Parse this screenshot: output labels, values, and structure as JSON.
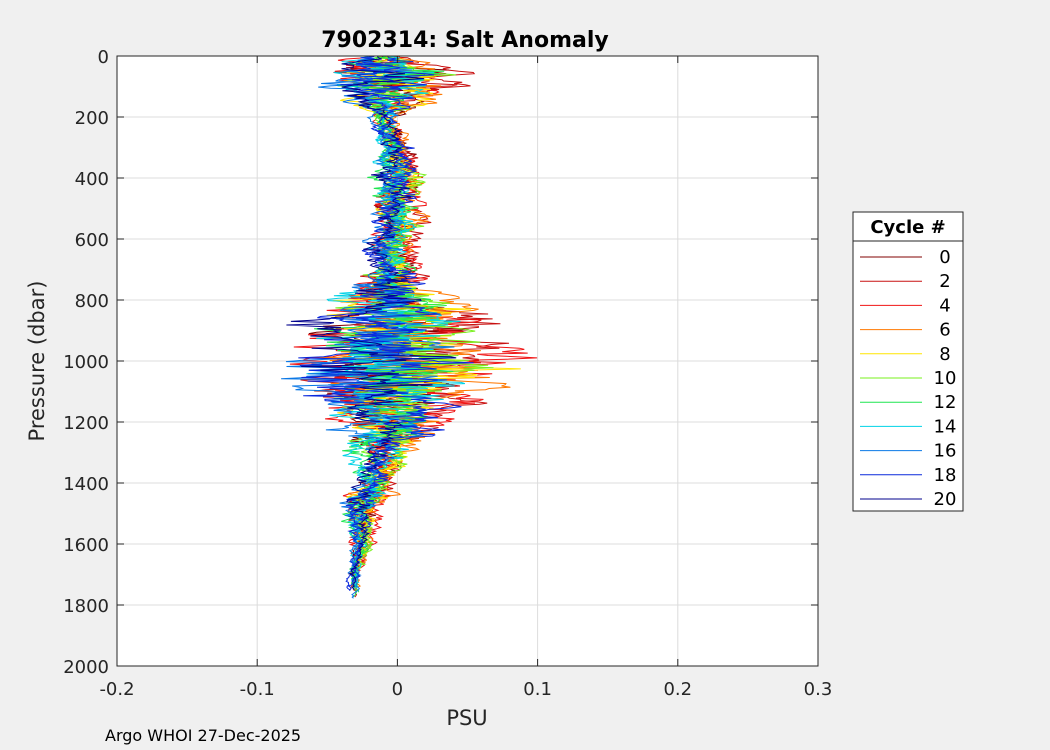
{
  "chart_data": {
    "type": "line",
    "title": "7902314: Salt Anomaly",
    "xlabel": "PSU",
    "ylabel": "Pressure (dbar)",
    "xlim": [
      -0.2,
      0.3
    ],
    "ylim": [
      0,
      2000
    ],
    "y_reversed": true,
    "grid": true,
    "x_ticks": [
      "-0.2",
      "-0.1",
      "0",
      "0.1",
      "0.2",
      "0.3"
    ],
    "x_tick_values": [
      -0.2,
      -0.1,
      0,
      0.1,
      0.2,
      0.3
    ],
    "y_ticks": [
      "0",
      "200",
      "400",
      "600",
      "800",
      "1000",
      "1200",
      "1400",
      "1600",
      "1800",
      "2000"
    ],
    "y_tick_values": [
      0,
      200,
      400,
      600,
      800,
      1000,
      1200,
      1400,
      1600,
      1800,
      2000
    ],
    "legend": {
      "title": "Cycle #",
      "placement": "right",
      "entries": [
        {
          "label": "0",
          "color": "#800000"
        },
        {
          "label": "2",
          "color": "#c81010"
        },
        {
          "label": "4",
          "color": "#f01414"
        },
        {
          "label": "6",
          "color": "#ff7800"
        },
        {
          "label": "8",
          "color": "#ffe600"
        },
        {
          "label": "10",
          "color": "#78f01e"
        },
        {
          "label": "12",
          "color": "#1ee650"
        },
        {
          "label": "14",
          "color": "#00d2e6"
        },
        {
          "label": "16",
          "color": "#0a78e6"
        },
        {
          "label": "18",
          "color": "#0a28dc"
        },
        {
          "label": "20",
          "color": "#00008c"
        }
      ]
    },
    "series_shape": {
      "pressures": [
        0,
        50,
        100,
        200,
        300,
        400,
        500,
        600,
        700,
        780,
        850,
        920,
        1000,
        1050,
        1100,
        1150,
        1220,
        1300,
        1400,
        1450,
        1500,
        1550,
        1600,
        1700,
        1790
      ],
      "center": [
        -0.01,
        0.0,
        0.0,
        -0.01,
        0.0,
        0.0,
        0.0,
        -0.005,
        0.0,
        0.0,
        0.0,
        0.0,
        0.0,
        0.0,
        0.0,
        0.0,
        0.0,
        -0.01,
        -0.015,
        -0.02,
        -0.025,
        -0.025,
        -0.025,
        -0.03,
        -0.03
      ],
      "amplitude": [
        0.02,
        0.06,
        0.05,
        0.01,
        0.015,
        0.02,
        0.02,
        0.02,
        0.02,
        0.05,
        0.06,
        0.07,
        0.09,
        0.09,
        0.07,
        0.05,
        0.04,
        0.02,
        0.015,
        0.02,
        0.015,
        0.01,
        0.008,
        0.006,
        0.004
      ]
    }
  },
  "footer": "Argo WHOI 27-Dec-2025"
}
